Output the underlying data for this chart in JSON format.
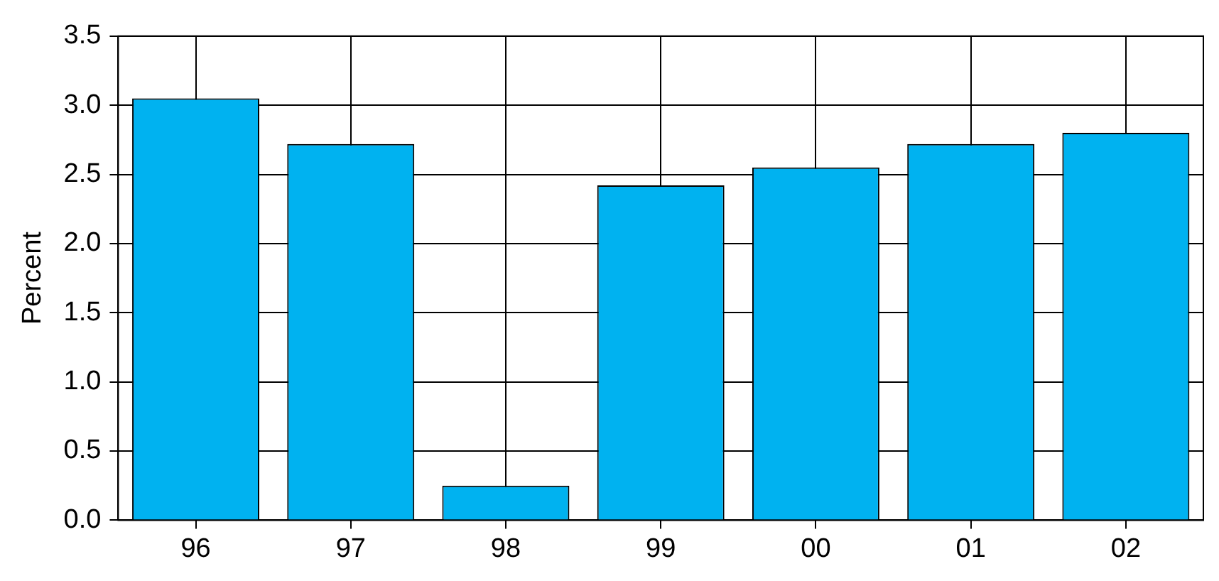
{
  "chart_data": {
    "type": "bar",
    "ylabel": "Percent",
    "categories": [
      "96",
      "97",
      "98",
      "99",
      "00",
      "01",
      "02"
    ],
    "values": [
      3.05,
      2.72,
      0.25,
      2.42,
      2.55,
      2.72,
      2.8
    ],
    "color": "#00b2f0",
    "ylim": [
      0,
      3.5
    ],
    "yticks": [
      {
        "value": 0,
        "label": "0.0"
      },
      {
        "value": 0.5,
        "label": "0.5"
      },
      {
        "value": 1,
        "label": "1.0"
      },
      {
        "value": 1.5,
        "label": "1.5"
      },
      {
        "value": 2,
        "label": "2.0"
      },
      {
        "value": 2.5,
        "label": "2.5"
      },
      {
        "value": 3,
        "label": "3.0"
      },
      {
        "value": 3.5,
        "label": "3.5"
      }
    ],
    "grid": true,
    "legend": false
  }
}
